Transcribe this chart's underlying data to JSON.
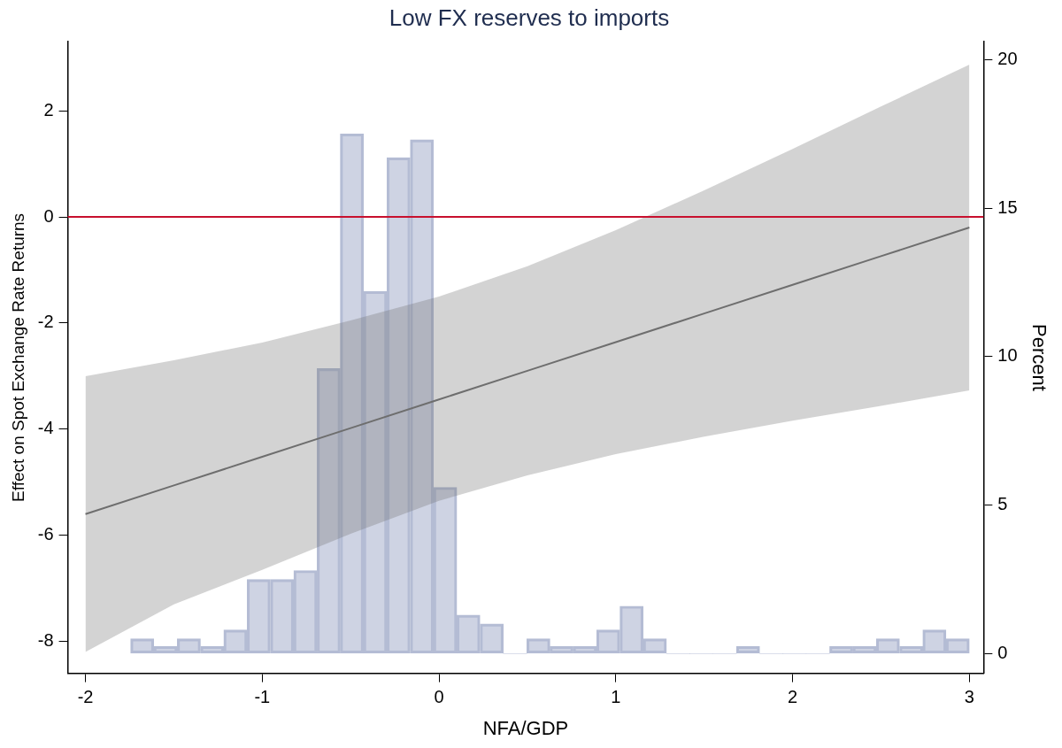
{
  "chart_data": {
    "type": "line",
    "title": "Low FX reserves to imports",
    "xlabel": "NFA/GDP",
    "ylabel": "Effect on Spot Exchange Rate Returns",
    "y2label": "Percent",
    "xlim": [
      -2.1,
      3.08
    ],
    "xticks": [
      -2,
      -1,
      0,
      1,
      2,
      3
    ],
    "ylim": [
      -8.6,
      3.3
    ],
    "yticks": [
      -8,
      -6,
      -4,
      -2,
      0,
      2
    ],
    "y2lim": [
      -0.66,
      20.6
    ],
    "y2ticks": [
      0,
      5,
      10,
      15,
      20
    ],
    "grid": false,
    "legend": false,
    "ref_lines": [
      {
        "axis": "y",
        "value": 0,
        "color": "#c8102e"
      }
    ],
    "series": [
      {
        "type": "bar",
        "axis": "y2",
        "color": "#b4bcd4",
        "x": [
          -1.679,
          -1.547,
          -1.415,
          -1.283,
          -1.152,
          -1.02,
          -0.888,
          -0.756,
          -0.624,
          -0.493,
          -0.361,
          -0.229,
          -0.097,
          0.035,
          0.166,
          0.298,
          0.43,
          0.562,
          0.693,
          0.825,
          0.957,
          1.089,
          1.221,
          1.353,
          1.484,
          1.616,
          1.748,
          1.88,
          2.011,
          2.143,
          2.275,
          2.407,
          2.539,
          2.671,
          2.802,
          2.934
        ],
        "values": [
          0.5,
          0.25,
          0.5,
          0.25,
          0.8,
          2.5,
          2.5,
          2.8,
          9.6,
          17.5,
          12.2,
          16.7,
          17.3,
          5.6,
          1.3,
          1.0,
          0,
          0.5,
          0.25,
          0.25,
          0.8,
          1.6,
          0.5,
          0,
          0,
          0,
          0.25,
          0,
          0,
          0,
          0.25,
          0.25,
          0.5,
          0.25,
          0.8,
          0.5
        ]
      },
      {
        "color": "#6e6e6e",
        "x": [
          -2,
          -1.5,
          -1,
          -0.5,
          0,
          0.5,
          1,
          1.5,
          2,
          2.5,
          3
        ],
        "values": [
          -5.6,
          -5.06,
          -4.52,
          -3.98,
          -3.44,
          -2.9,
          -2.36,
          -1.82,
          -1.28,
          -0.74,
          -0.2
        ],
        "lower": [
          -8.2,
          -7.3,
          -6.65,
          -5.97,
          -5.35,
          -4.87,
          -4.47,
          -4.14,
          -3.84,
          -3.56,
          -3.27
        ],
        "upper": [
          -3.0,
          -2.7,
          -2.37,
          -1.95,
          -1.5,
          -0.93,
          -0.25,
          0.5,
          1.28,
          2.08,
          2.87
        ]
      }
    ]
  }
}
